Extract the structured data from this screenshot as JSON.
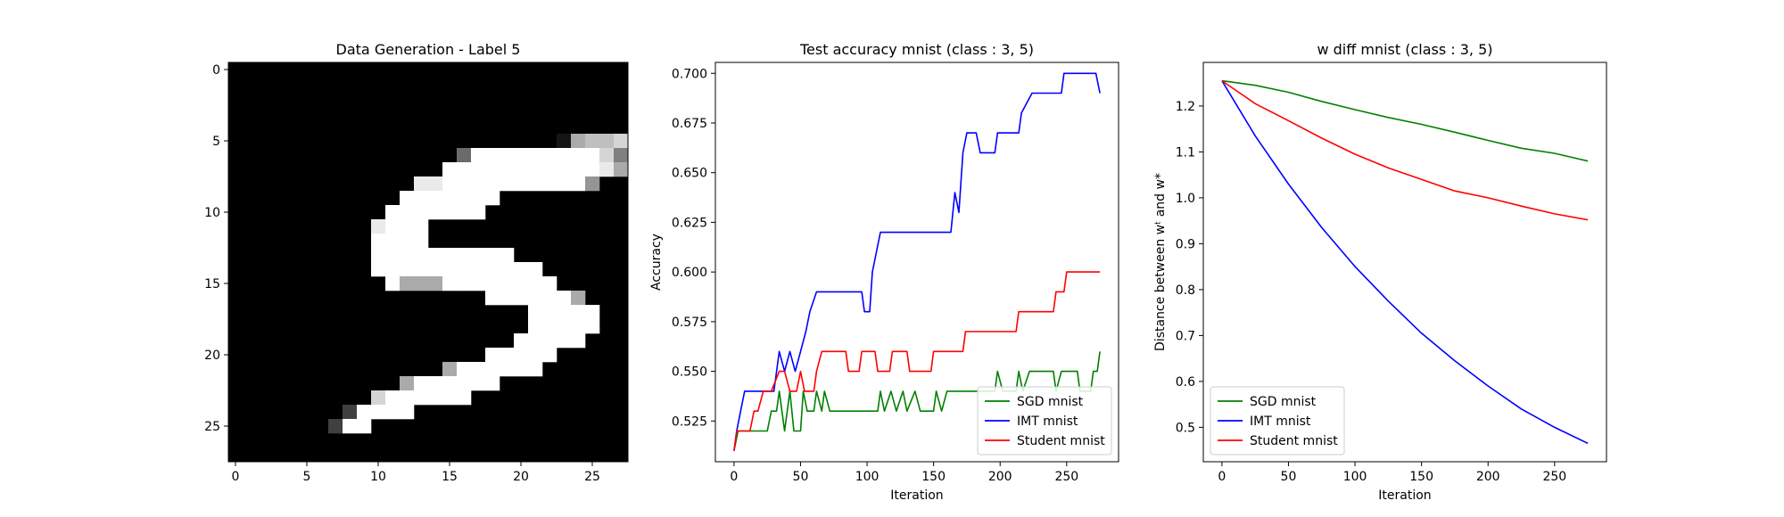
{
  "chart_data": [
    {
      "type": "heatmap",
      "title": "Data Generation - Label 5",
      "xticks": [
        "0",
        "5",
        "10",
        "15",
        "20",
        "25"
      ],
      "yticks": [
        "0",
        "5",
        "10",
        "15",
        "20",
        "25"
      ],
      "xlim": [
        -0.5,
        27.5
      ],
      "ylim": [
        -0.5,
        27.5
      ],
      "colormap": "gray",
      "rows": [
        "0000000000000000000000000000",
        "0000000000000000000000000000",
        "0000000000000000000000000000",
        "0000000000000000000000000000",
        "0000000000000000000000000000",
        "000000000000000000000001899a",
        "00000000000000005ccccccddda6",
        "000000000000000cccccccccccb8",
        "0000000000000bbcccccccccc700",
        "000000000000fcccccc000000000",
        "00000000000ccccccc0000000000",
        "0000000000bccc00000000000000",
        "0000000000dccc00000000000000",
        "0000000000cccccccccc00000000",
        "0000000000cccccccccccc000000",
        "00000000000c888cccccccc00000",
        "000000000000000000cccccc8000",
        "000000000000000000000ccccc00",
        "000000000000000000000ccccc00",
        "00000000000000000000ccccc000",
        "000000000000000000ccccc00000",
        "0000000000000008cccccc000000",
        "0000000000008cccccc000000000",
        "0000000000acccccc00000000000",
        "000000003cccc000000000000000",
        "00000003cc000000000000000000",
        "0000000000000000000000000000",
        "0000000000000000000000000000"
      ]
    },
    {
      "type": "line",
      "title": "Test accuracy mnist (class : 3, 5)",
      "xlabel": "Iteration",
      "ylabel": "Accuracy",
      "xlim": [
        -14,
        289
      ],
      "ylim": [
        0.5045,
        0.7055
      ],
      "xticks": [
        0,
        50,
        100,
        150,
        200,
        250
      ],
      "xtick_labels": [
        "0",
        "50",
        "100",
        "150",
        "200",
        "250"
      ],
      "yticks": [
        0.525,
        0.55,
        0.575,
        0.6,
        0.625,
        0.65,
        0.675,
        0.7
      ],
      "ytick_labels": [
        "0.525",
        "0.550",
        "0.575",
        "0.600",
        "0.625",
        "0.650",
        "0.675",
        "0.700"
      ],
      "legend_position": "bottom-right",
      "series": [
        {
          "name": "SGD mnist",
          "color": "#008000",
          "points": [
            [
              0,
              0.51
            ],
            [
              3,
              0.52
            ],
            [
              25,
              0.52
            ],
            [
              28,
              0.53
            ],
            [
              32,
              0.53
            ],
            [
              34,
              0.54
            ],
            [
              38,
              0.52
            ],
            [
              42,
              0.54
            ],
            [
              45,
              0.52
            ],
            [
              50,
              0.52
            ],
            [
              52,
              0.54
            ],
            [
              55,
              0.53
            ],
            [
              60,
              0.53
            ],
            [
              62,
              0.54
            ],
            [
              66,
              0.53
            ],
            [
              68,
              0.54
            ],
            [
              72,
              0.53
            ],
            [
              108,
              0.53
            ],
            [
              110,
              0.54
            ],
            [
              113,
              0.53
            ],
            [
              118,
              0.54
            ],
            [
              122,
              0.53
            ],
            [
              127,
              0.54
            ],
            [
              130,
              0.53
            ],
            [
              136,
              0.54
            ],
            [
              140,
              0.53
            ],
            [
              150,
              0.53
            ],
            [
              152,
              0.54
            ],
            [
              156,
              0.53
            ],
            [
              160,
              0.54
            ],
            [
              196,
              0.54
            ],
            [
              198,
              0.55
            ],
            [
              202,
              0.54
            ],
            [
              212,
              0.54
            ],
            [
              214,
              0.55
            ],
            [
              217,
              0.54
            ],
            [
              222,
              0.55
            ],
            [
              240,
              0.55
            ],
            [
              242,
              0.54
            ],
            [
              246,
              0.55
            ],
            [
              258,
              0.55
            ],
            [
              260,
              0.54
            ],
            [
              268,
              0.54
            ],
            [
              270,
              0.55
            ],
            [
              273,
              0.55
            ],
            [
              275,
              0.56
            ]
          ]
        },
        {
          "name": "IMT mnist",
          "color": "#0000ff",
          "points": [
            [
              0,
              0.51
            ],
            [
              2,
              0.52
            ],
            [
              5,
              0.53
            ],
            [
              8,
              0.54
            ],
            [
              30,
              0.54
            ],
            [
              34,
              0.56
            ],
            [
              38,
              0.55
            ],
            [
              42,
              0.56
            ],
            [
              46,
              0.55
            ],
            [
              50,
              0.56
            ],
            [
              54,
              0.57
            ],
            [
              57,
              0.58
            ],
            [
              62,
              0.59
            ],
            [
              96,
              0.59
            ],
            [
              98,
              0.58
            ],
            [
              102,
              0.58
            ],
            [
              104,
              0.6
            ],
            [
              107,
              0.61
            ],
            [
              110,
              0.62
            ],
            [
              163,
              0.62
            ],
            [
              166,
              0.64
            ],
            [
              169,
              0.63
            ],
            [
              172,
              0.66
            ],
            [
              175,
              0.67
            ],
            [
              182,
              0.67
            ],
            [
              185,
              0.66
            ],
            [
              196,
              0.66
            ],
            [
              198,
              0.67
            ],
            [
              214,
              0.67
            ],
            [
              216,
              0.68
            ],
            [
              224,
              0.69
            ],
            [
              246,
              0.69
            ],
            [
              248,
              0.7
            ],
            [
              260,
              0.7
            ],
            [
              272,
              0.7
            ],
            [
              275,
              0.69
            ]
          ]
        },
        {
          "name": "Student mnist",
          "color": "#ff0000",
          "points": [
            [
              0,
              0.51
            ],
            [
              2,
              0.52
            ],
            [
              12,
              0.52
            ],
            [
              15,
              0.53
            ],
            [
              18,
              0.53
            ],
            [
              22,
              0.54
            ],
            [
              28,
              0.54
            ],
            [
              34,
              0.55
            ],
            [
              38,
              0.55
            ],
            [
              42,
              0.54
            ],
            [
              47,
              0.54
            ],
            [
              50,
              0.55
            ],
            [
              53,
              0.54
            ],
            [
              60,
              0.54
            ],
            [
              62,
              0.55
            ],
            [
              66,
              0.56
            ],
            [
              84,
              0.56
            ],
            [
              86,
              0.55
            ],
            [
              94,
              0.55
            ],
            [
              96,
              0.56
            ],
            [
              106,
              0.56
            ],
            [
              108,
              0.55
            ],
            [
              117,
              0.55
            ],
            [
              119,
              0.56
            ],
            [
              130,
              0.56
            ],
            [
              132,
              0.55
            ],
            [
              148,
              0.55
            ],
            [
              150,
              0.56
            ],
            [
              172,
              0.56
            ],
            [
              174,
              0.57
            ],
            [
              212,
              0.57
            ],
            [
              214,
              0.58
            ],
            [
              240,
              0.58
            ],
            [
              242,
              0.59
            ],
            [
              248,
              0.59
            ],
            [
              250,
              0.6
            ],
            [
              275,
              0.6
            ]
          ]
        }
      ]
    },
    {
      "type": "line",
      "title": "w diff mnist (class : 3, 5)",
      "xlabel": "Iteration",
      "ylabel": "Distance between wᵗ and w*",
      "xlim": [
        -14,
        289
      ],
      "ylim": [
        0.425,
        1.295
      ],
      "xticks": [
        0,
        50,
        100,
        150,
        200,
        250
      ],
      "xtick_labels": [
        "0",
        "50",
        "100",
        "150",
        "200",
        "250"
      ],
      "yticks": [
        0.5,
        0.6,
        0.7,
        0.8,
        0.9,
        1.0,
        1.1,
        1.2
      ],
      "ytick_labels": [
        "0.5",
        "0.6",
        "0.7",
        "0.8",
        "0.9",
        "1.0",
        "1.1",
        "1.2"
      ],
      "legend_position": "bottom-left",
      "series": [
        {
          "name": "SGD mnist",
          "color": "#008000",
          "points": [
            [
              0,
              1.255
            ],
            [
              25,
              1.245
            ],
            [
              50,
              1.23
            ],
            [
              75,
              1.21
            ],
            [
              100,
              1.192
            ],
            [
              125,
              1.175
            ],
            [
              150,
              1.16
            ],
            [
              175,
              1.143
            ],
            [
              200,
              1.125
            ],
            [
              225,
              1.108
            ],
            [
              250,
              1.097
            ],
            [
              275,
              1.08
            ]
          ]
        },
        {
          "name": "IMT mnist",
          "color": "#0000ff",
          "points": [
            [
              0,
              1.255
            ],
            [
              25,
              1.135
            ],
            [
              50,
              1.03
            ],
            [
              75,
              0.935
            ],
            [
              100,
              0.85
            ],
            [
              125,
              0.775
            ],
            [
              150,
              0.705
            ],
            [
              175,
              0.645
            ],
            [
              200,
              0.59
            ],
            [
              225,
              0.54
            ],
            [
              250,
              0.5
            ],
            [
              275,
              0.465
            ]
          ]
        },
        {
          "name": "Student mnist",
          "color": "#ff0000",
          "points": [
            [
              0,
              1.255
            ],
            [
              25,
              1.205
            ],
            [
              50,
              1.168
            ],
            [
              75,
              1.13
            ],
            [
              100,
              1.095
            ],
            [
              125,
              1.065
            ],
            [
              150,
              1.04
            ],
            [
              175,
              1.015
            ],
            [
              200,
              1.0
            ],
            [
              225,
              0.982
            ],
            [
              250,
              0.965
            ],
            [
              275,
              0.952
            ]
          ]
        }
      ]
    }
  ]
}
